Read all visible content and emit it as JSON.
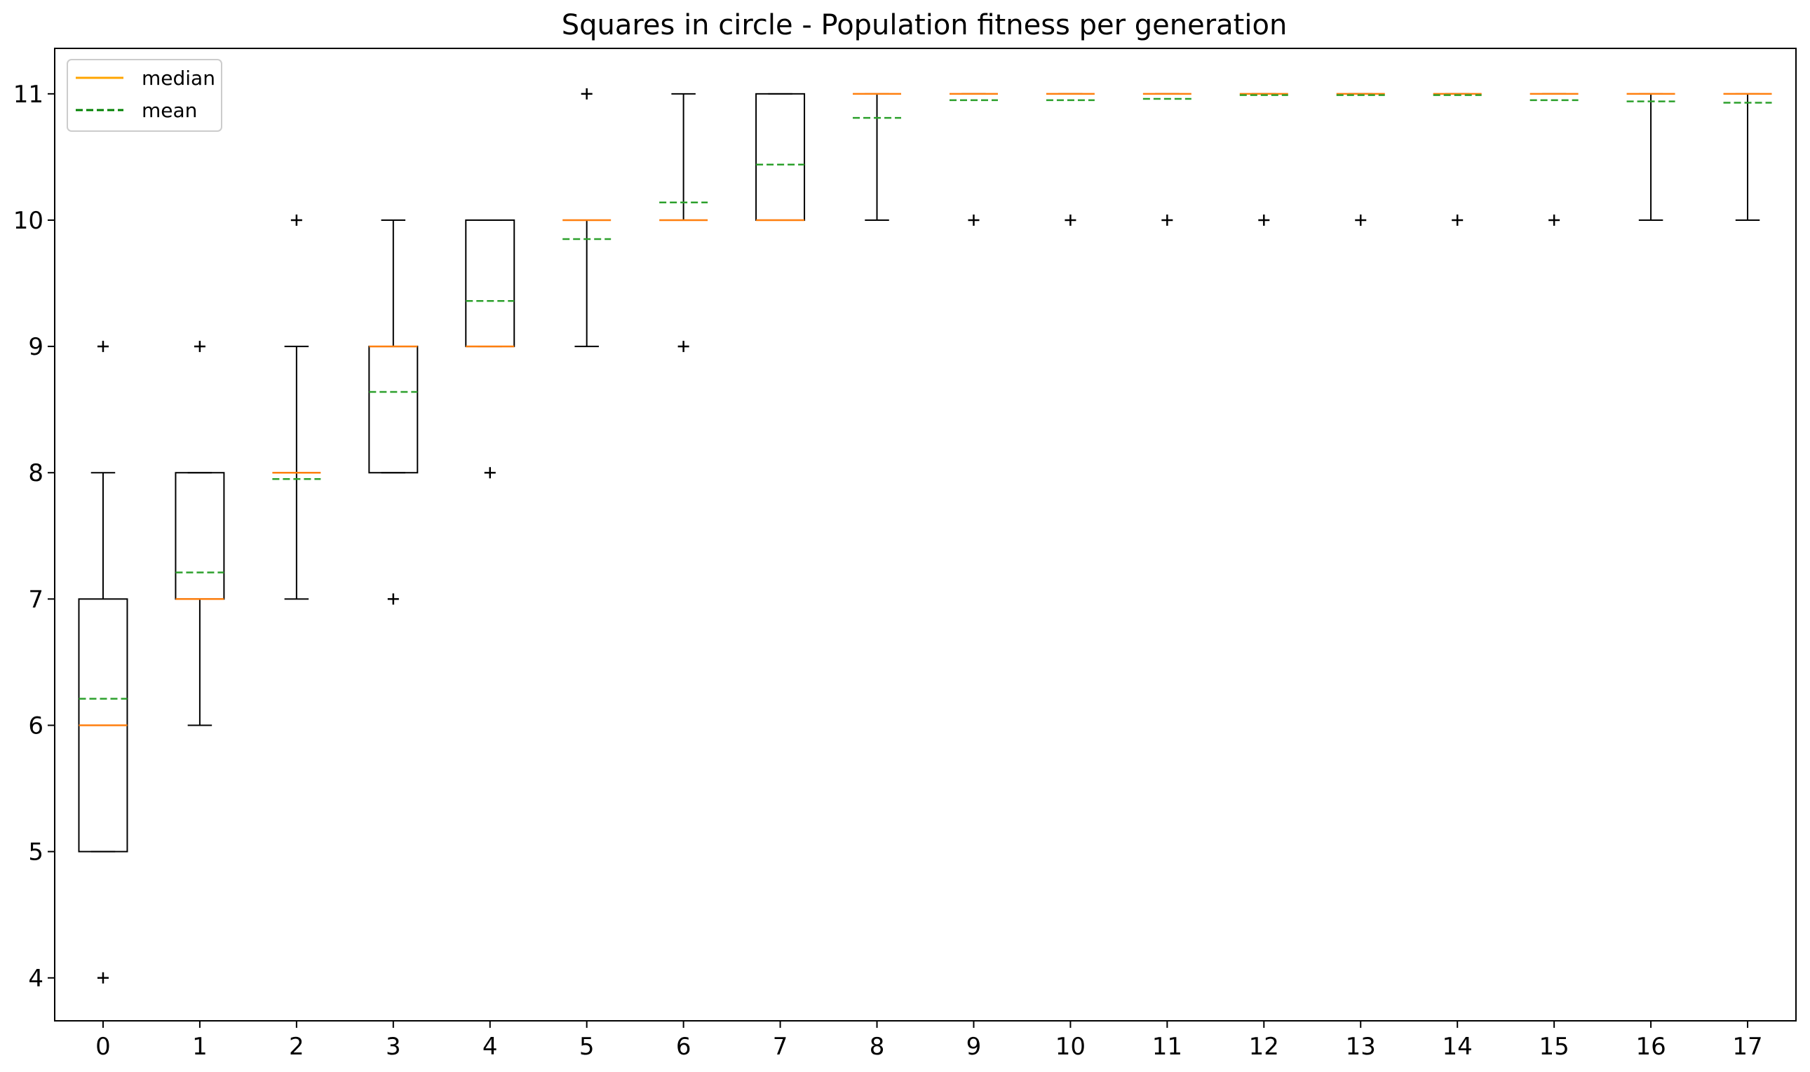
{
  "chart_data": {
    "type": "box",
    "title": "Squares in circle - Population fitness per generation",
    "xlabel": "",
    "ylabel": "",
    "categories": [
      "0",
      "1",
      "2",
      "3",
      "4",
      "5",
      "6",
      "7",
      "8",
      "9",
      "10",
      "11",
      "12",
      "13",
      "14",
      "15",
      "16",
      "17"
    ],
    "ylim": [
      3.66,
      11.36
    ],
    "yticks": [
      4,
      5,
      6,
      7,
      8,
      9,
      10,
      11
    ],
    "grid": false,
    "legend": {
      "position": "top-left",
      "entries": [
        {
          "label": "median",
          "color": "#ffa500",
          "style": "solid"
        },
        {
          "label": "mean",
          "color": "#008000",
          "style": "dashed"
        }
      ]
    },
    "colors": {
      "box": "#000000",
      "median": "#ff7f0e",
      "mean": "#2ca02c"
    },
    "boxes": [
      {
        "x": "0",
        "whislo": 5,
        "q1": 5,
        "med": 6,
        "q3": 7,
        "whishi": 8,
        "mean": 6.21,
        "fliers": [
          9,
          4
        ]
      },
      {
        "x": "1",
        "whislo": 6,
        "q1": 7,
        "med": 7,
        "q3": 8,
        "whishi": 8,
        "mean": 7.21,
        "fliers": [
          9
        ]
      },
      {
        "x": "2",
        "whislo": 7,
        "q1": 8,
        "med": 8,
        "q3": 8,
        "whishi": 9,
        "mean": 7.95,
        "fliers": [
          10
        ]
      },
      {
        "x": "3",
        "whislo": 8,
        "q1": 8,
        "med": 9,
        "q3": 9,
        "whishi": 10,
        "mean": 8.64,
        "fliers": [
          7
        ]
      },
      {
        "x": "4",
        "whislo": 9,
        "q1": 9,
        "med": 9,
        "q3": 10,
        "whishi": 10,
        "mean": 9.36,
        "fliers": [
          8
        ]
      },
      {
        "x": "5",
        "whislo": 9,
        "q1": 10,
        "med": 10,
        "q3": 10,
        "whishi": 10,
        "mean": 9.85,
        "fliers": [
          11
        ]
      },
      {
        "x": "6",
        "whislo": 10,
        "q1": 10,
        "med": 10,
        "q3": 10,
        "whishi": 11,
        "mean": 10.14,
        "fliers": [
          9
        ]
      },
      {
        "x": "7",
        "whislo": 10,
        "q1": 10,
        "med": 10,
        "q3": 11,
        "whishi": 11,
        "mean": 10.44,
        "fliers": []
      },
      {
        "x": "8",
        "whislo": 10,
        "q1": 11,
        "med": 11,
        "q3": 11,
        "whishi": 11,
        "mean": 10.81,
        "fliers": []
      },
      {
        "x": "9",
        "whislo": 11,
        "q1": 11,
        "med": 11,
        "q3": 11,
        "whishi": 11,
        "mean": 10.95,
        "fliers": [
          10
        ]
      },
      {
        "x": "10",
        "whislo": 11,
        "q1": 11,
        "med": 11,
        "q3": 11,
        "whishi": 11,
        "mean": 10.95,
        "fliers": [
          10
        ]
      },
      {
        "x": "11",
        "whislo": 11,
        "q1": 11,
        "med": 11,
        "q3": 11,
        "whishi": 11,
        "mean": 10.96,
        "fliers": [
          10
        ]
      },
      {
        "x": "12",
        "whislo": 11,
        "q1": 11,
        "med": 11,
        "q3": 11,
        "whishi": 11,
        "mean": 10.99,
        "fliers": [
          10
        ]
      },
      {
        "x": "13",
        "whislo": 11,
        "q1": 11,
        "med": 11,
        "q3": 11,
        "whishi": 11,
        "mean": 10.99,
        "fliers": [
          10
        ]
      },
      {
        "x": "14",
        "whislo": 11,
        "q1": 11,
        "med": 11,
        "q3": 11,
        "whishi": 11,
        "mean": 10.99,
        "fliers": [
          10
        ]
      },
      {
        "x": "15",
        "whislo": 11,
        "q1": 11,
        "med": 11,
        "q3": 11,
        "whishi": 11,
        "mean": 10.95,
        "fliers": [
          10
        ]
      },
      {
        "x": "16",
        "whislo": 10,
        "q1": 11,
        "med": 11,
        "q3": 11,
        "whishi": 11,
        "mean": 10.94,
        "fliers": []
      },
      {
        "x": "17",
        "whislo": 10,
        "q1": 11,
        "med": 11,
        "q3": 11,
        "whishi": 11,
        "mean": 10.93,
        "fliers": []
      }
    ]
  }
}
